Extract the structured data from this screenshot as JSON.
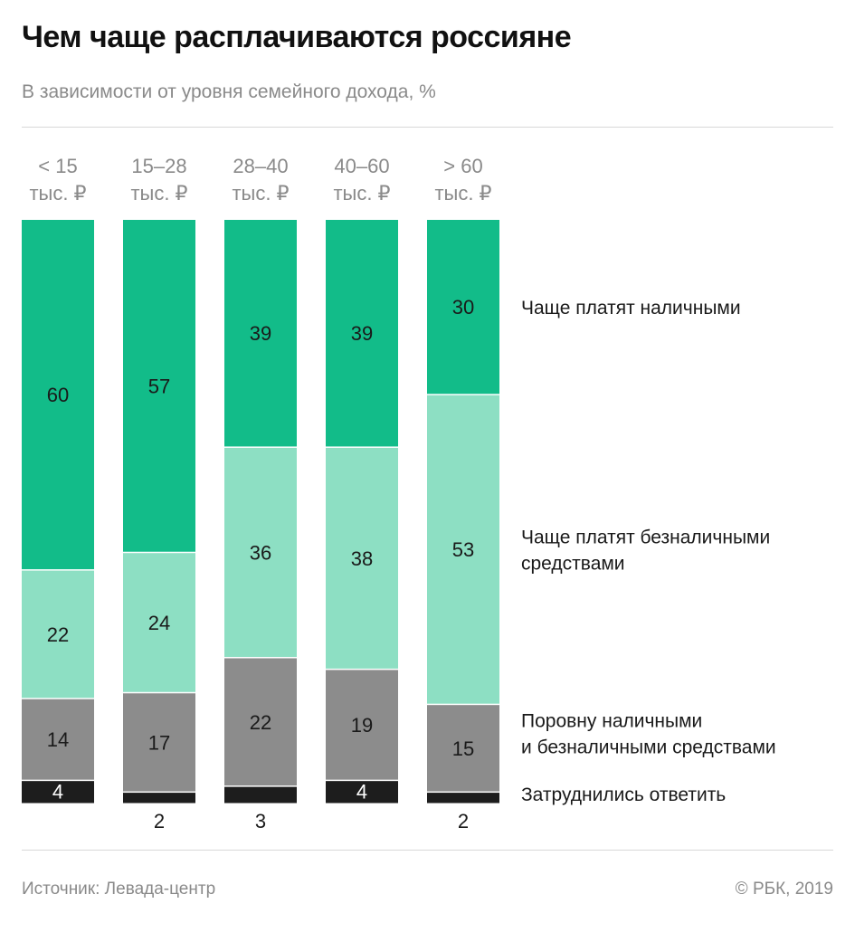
{
  "header": {
    "title": "Чем чаще расплачиваются россияне",
    "subtitle": "В зависимости от уровня семейного дохода, %"
  },
  "footer": {
    "source": "Источник: Левада-центр",
    "copyright": "© РБК, 2019"
  },
  "chart_data": {
    "type": "bar",
    "stacked": true,
    "title": "Чем чаще расплачиваются россияне",
    "subtitle": "В зависимости от уровня семейного дохода, %",
    "categories": [
      [
        "< 15",
        "тыс. ₽"
      ],
      [
        "15–28",
        "тыс. ₽"
      ],
      [
        "28–40",
        "тыс. ₽"
      ],
      [
        "40–60",
        "тыс. ₽"
      ],
      [
        "> 60",
        "тыс. ₽"
      ]
    ],
    "series": [
      {
        "name": [
          "Чаще платят наличными"
        ],
        "color": "#12bc89",
        "text_color": "#1a1a1a",
        "values": [
          60,
          57,
          39,
          39,
          30
        ]
      },
      {
        "name": [
          "Чаще платят безналичными",
          "средствами"
        ],
        "color": "#8ddfc3",
        "text_color": "#1a1a1a",
        "values": [
          22,
          24,
          36,
          38,
          53
        ]
      },
      {
        "name": [
          "Поровну наличными",
          "и безналичными средствами"
        ],
        "color": "#8c8c8c",
        "text_color": "#1a1a1a",
        "values": [
          14,
          17,
          22,
          19,
          15
        ]
      },
      {
        "name": [
          "Затруднились ответить"
        ],
        "color": "#1d1d1d",
        "text_color": "#ffffff",
        "values": [
          4,
          2,
          3,
          4,
          2
        ]
      }
    ],
    "ylim": [
      0,
      100
    ],
    "xlabel": "",
    "ylabel": ""
  }
}
